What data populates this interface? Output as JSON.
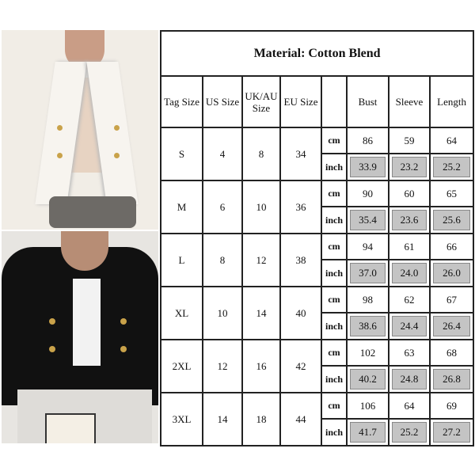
{
  "title": "Material: Cotton Blend",
  "headers": [
    "Tag Size",
    "US Size",
    "UK/AU Size",
    "EU Size",
    "",
    "Bust",
    "Sleeve",
    "Length"
  ],
  "units": {
    "cm": "cm",
    "inch": "inch"
  },
  "rows": [
    {
      "tag": "S",
      "us": "4",
      "uk": "8",
      "eu": "34",
      "cm": [
        "86",
        "59",
        "64"
      ],
      "inch": [
        "33.9",
        "23.2",
        "25.2"
      ]
    },
    {
      "tag": "M",
      "us": "6",
      "uk": "10",
      "eu": "36",
      "cm": [
        "90",
        "60",
        "65"
      ],
      "inch": [
        "35.4",
        "23.6",
        "25.6"
      ]
    },
    {
      "tag": "L",
      "us": "8",
      "uk": "12",
      "eu": "38",
      "cm": [
        "94",
        "61",
        "66"
      ],
      "inch": [
        "37.0",
        "24.0",
        "26.0"
      ]
    },
    {
      "tag": "XL",
      "us": "10",
      "uk": "14",
      "eu": "40",
      "cm": [
        "98",
        "62",
        "67"
      ],
      "inch": [
        "38.6",
        "24.4",
        "26.4"
      ]
    },
    {
      "tag": "2XL",
      "us": "12",
      "uk": "16",
      "eu": "42",
      "cm": [
        "102",
        "63",
        "68"
      ],
      "inch": [
        "40.2",
        "24.8",
        "26.8"
      ]
    },
    {
      "tag": "3XL",
      "us": "14",
      "uk": "18",
      "eu": "44",
      "cm": [
        "106",
        "64",
        "69"
      ],
      "inch": [
        "41.7",
        "25.2",
        "27.2"
      ]
    }
  ],
  "colors": {
    "white_blazer": "#f1ede6",
    "black_blazer": "#111111",
    "inch_cell": "#c4c4c4"
  }
}
